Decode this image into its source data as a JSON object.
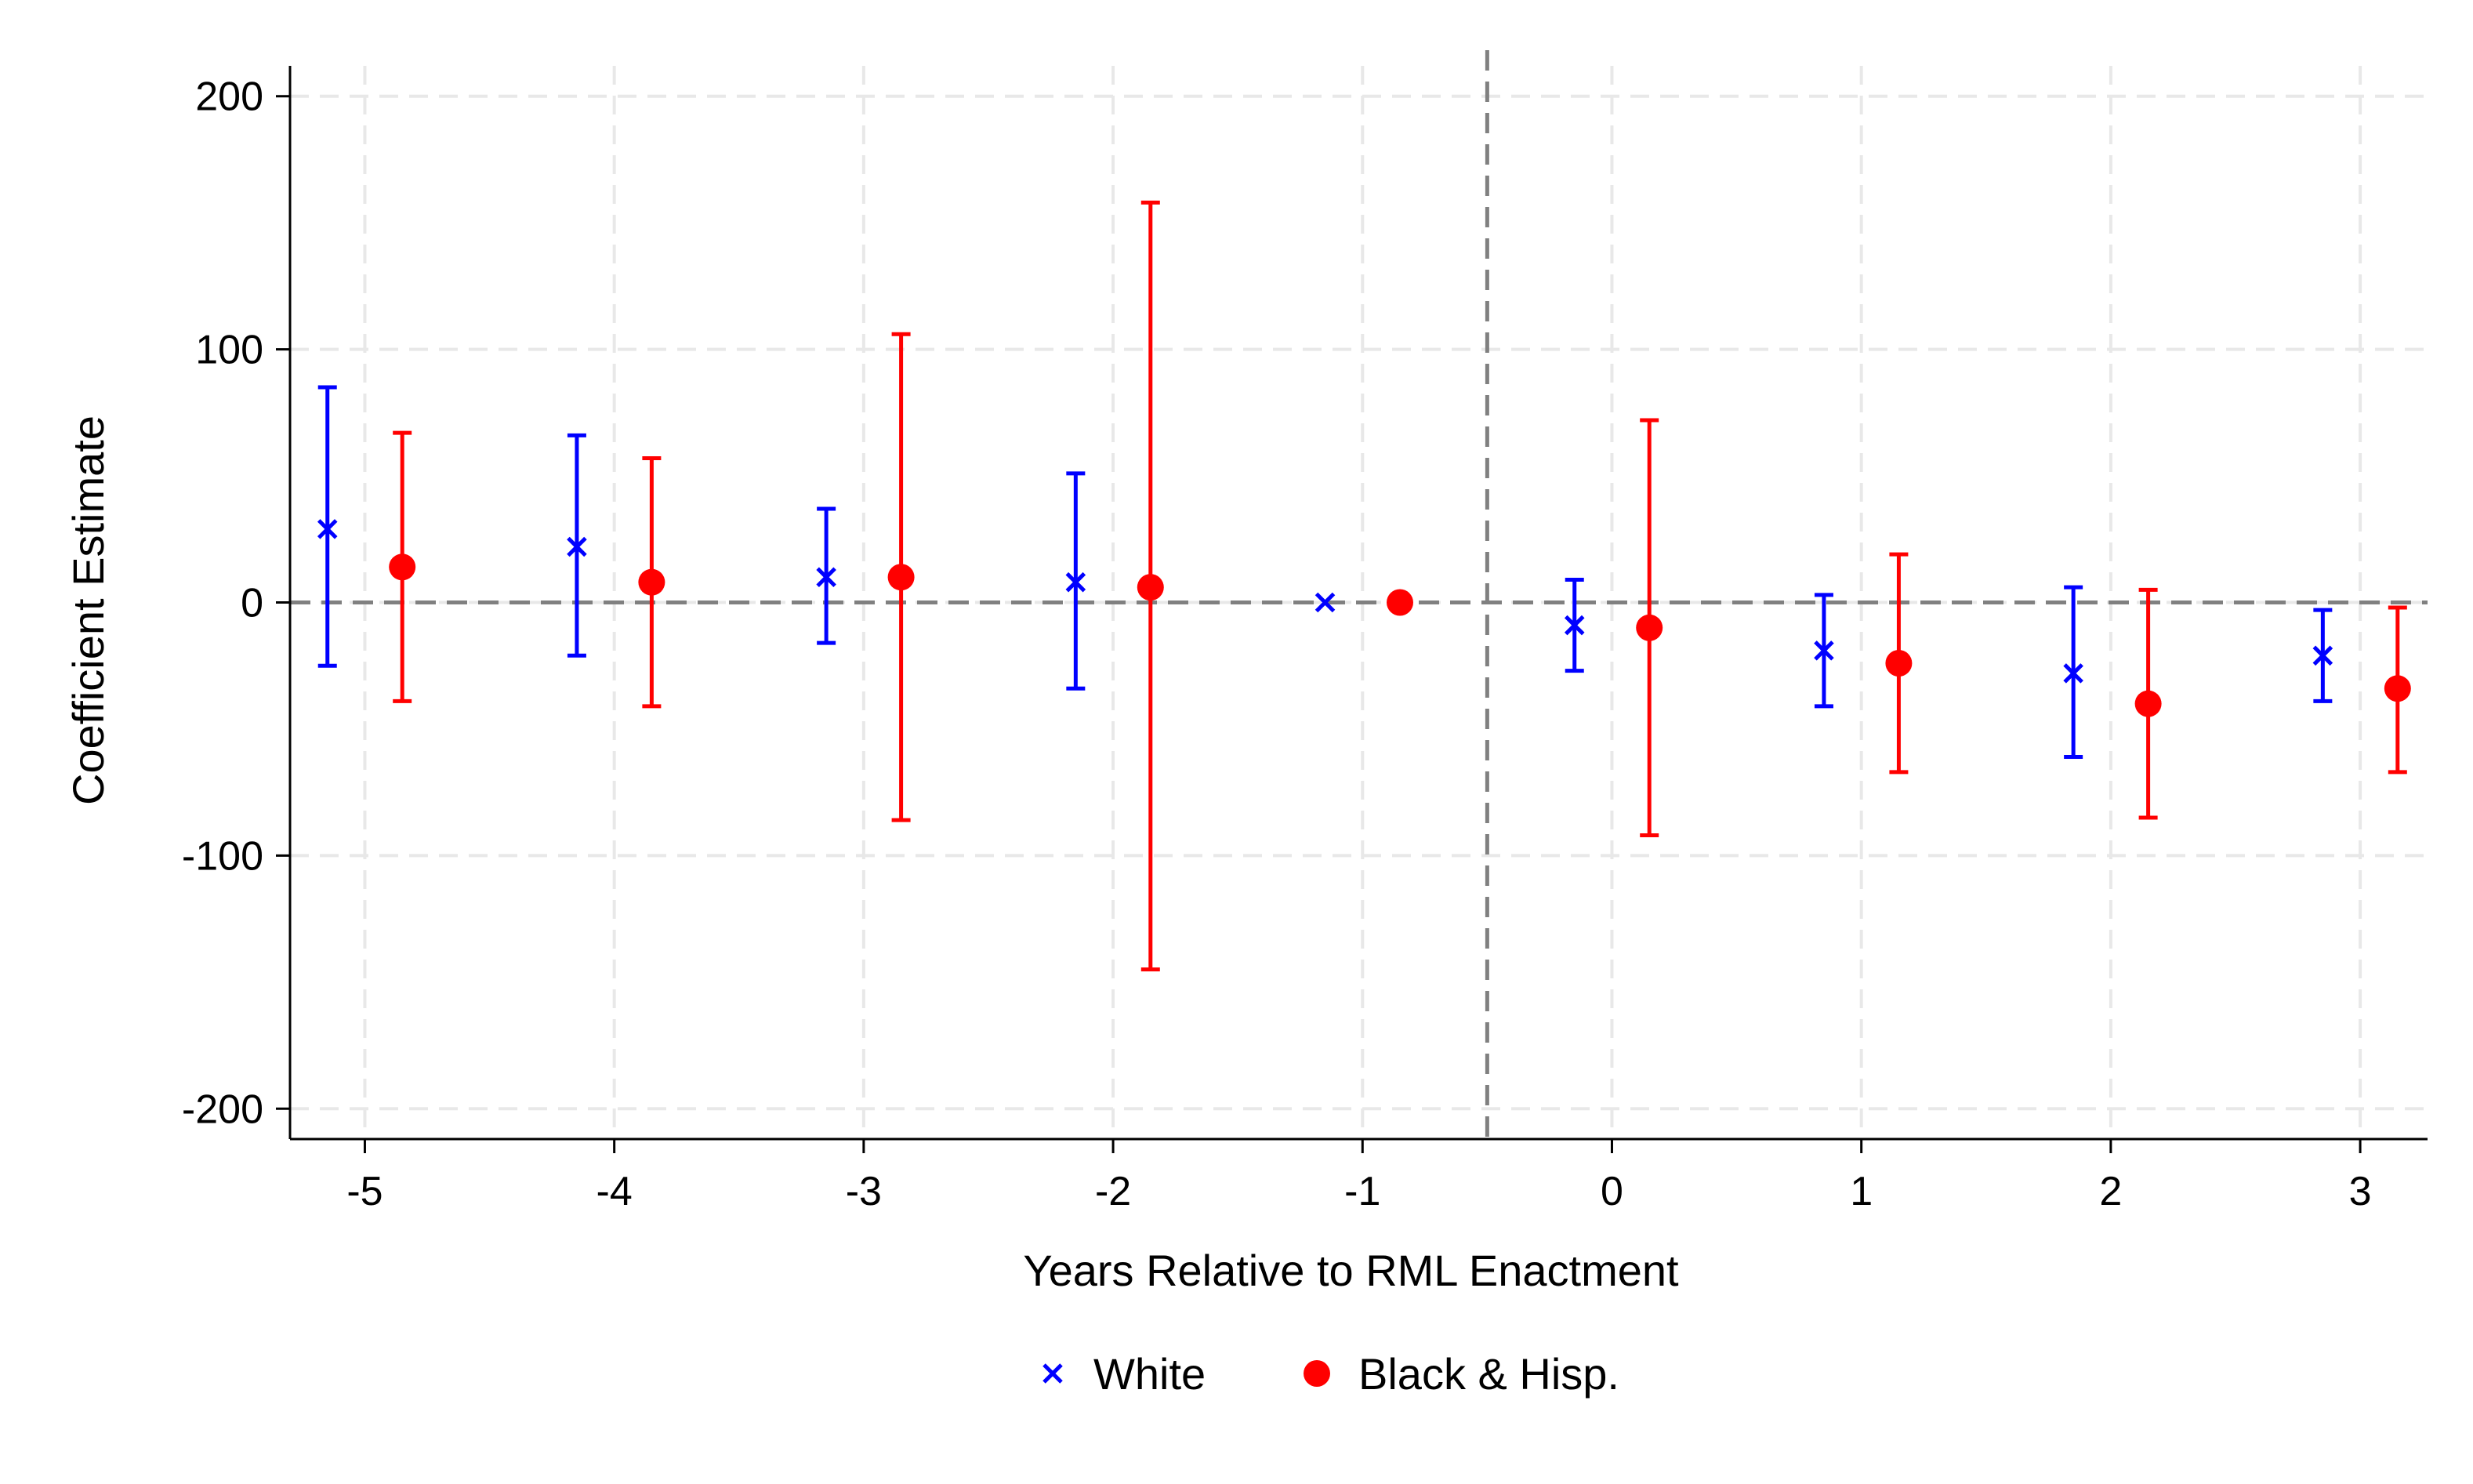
{
  "chart_data": {
    "type": "scatter",
    "title": "",
    "xlabel": "Years Relative to RML Enactment",
    "ylabel": "Coefficient Estimate",
    "xlim": [
      -5.3,
      3.27
    ],
    "ylim": [
      -212,
      212
    ],
    "xticks": [
      -5,
      -4,
      -3,
      -2,
      -1,
      0,
      1,
      2,
      3
    ],
    "xtick_labels": [
      "-5",
      "-4",
      "-3",
      "-2",
      "-1",
      "0",
      "1",
      "2",
      "3"
    ],
    "yticks": [
      -200,
      -100,
      0,
      100,
      200
    ],
    "ytick_labels": [
      "-200",
      "-100",
      "0",
      "100",
      "200"
    ],
    "grid": true,
    "zero_line": 0,
    "event_line": -0.5,
    "legend_position": "bottom",
    "series": [
      {
        "name": "White",
        "color": "#0000ff",
        "marker": "x",
        "offset": -0.15,
        "x": [
          -5,
          -4,
          -3,
          -2,
          -1,
          0,
          1,
          2,
          3
        ],
        "y": [
          29,
          22,
          10,
          8,
          0,
          -9,
          -19,
          -28,
          -21
        ],
        "ci_low": [
          -25,
          -21,
          -16,
          -34,
          0,
          -27,
          -41,
          -61,
          -39
        ],
        "ci_high": [
          85,
          66,
          37,
          51,
          0,
          9,
          3,
          6,
          -3
        ]
      },
      {
        "name": "Black & Hisp.",
        "color": "#ff0000",
        "marker": "circle",
        "offset": 0.15,
        "x": [
          -5,
          -4,
          -3,
          -2,
          -1,
          0,
          1,
          2,
          3
        ],
        "y": [
          14,
          8,
          10,
          6,
          0,
          -10,
          -24,
          -40,
          -34
        ],
        "ci_low": [
          -39,
          -41,
          -86,
          -145,
          0,
          -92,
          -67,
          -85,
          -67
        ],
        "ci_high": [
          67,
          57,
          106,
          158,
          0,
          72,
          19,
          5,
          -2
        ]
      }
    ]
  }
}
